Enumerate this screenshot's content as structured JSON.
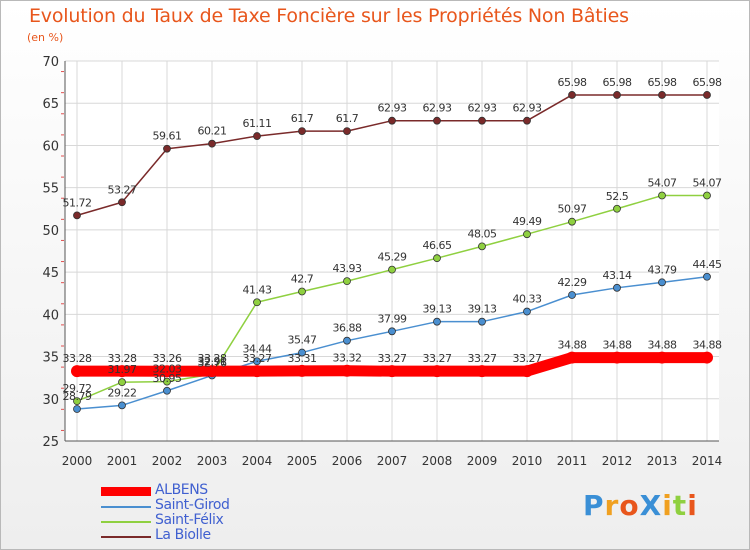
{
  "title": "Evolution du Taux de Taxe Foncière sur les Propriétés Non Bâties",
  "unit": "(en %)",
  "logo": "ProXiti",
  "chart_data": {
    "type": "line",
    "title": "Evolution du Taux de Taxe Foncière sur les Propriétés Non Bâties",
    "ylabel": "(en %)",
    "xlabel": "",
    "ylim": [
      25,
      70
    ],
    "yticks": [
      25,
      30,
      35,
      40,
      45,
      50,
      55,
      60,
      65,
      70
    ],
    "x": [
      "2000",
      "2001",
      "2002",
      "2003",
      "2004",
      "2005",
      "2006",
      "2007",
      "2008",
      "2009",
      "2010",
      "2011",
      "2012",
      "2013",
      "2014"
    ],
    "grid": true,
    "series": [
      {
        "name": "ALBENS",
        "color": "#ff0000",
        "values": [
          33.28,
          33.28,
          33.26,
          33.28,
          33.27,
          33.31,
          33.32,
          33.27,
          33.27,
          33.27,
          33.27,
          34.88,
          34.88,
          34.88,
          34.88
        ],
        "labels": [
          "33.28",
          "33.28",
          "33.26",
          "33.28",
          "33.27",
          "33.31",
          "33.32",
          "33.27",
          "33.27",
          "33.27",
          "33.27",
          "34.88",
          "34.88",
          "34.88",
          "34.88"
        ]
      },
      {
        "name": "Saint-Girod",
        "color": "#4a8fd0",
        "values": [
          28.79,
          29.22,
          30.95,
          32.76,
          34.44,
          35.47,
          36.88,
          37.99,
          39.13,
          39.13,
          40.33,
          42.29,
          43.14,
          43.79,
          44.45
        ],
        "labels": [
          "28.79",
          "29.22",
          "30.95",
          "32.76",
          "34.44",
          "35.47",
          "36.88",
          "37.99",
          "39.13",
          "39.13",
          "40.33",
          "42.29",
          "43.14",
          "43.79",
          "44.45"
        ]
      },
      {
        "name": "Saint-Félix",
        "color": "#8fd040",
        "values": [
          29.72,
          31.97,
          32.03,
          32.91,
          41.43,
          42.7,
          43.93,
          45.29,
          46.65,
          48.05,
          49.49,
          50.97,
          52.5,
          54.07,
          54.07
        ],
        "labels": [
          "29.72",
          "31.97",
          "32.03",
          "32.91",
          "41.43",
          "42.7",
          "43.93",
          "45.29",
          "46.65",
          "48.05",
          "49.49",
          "50.97",
          "52.5",
          "54.07",
          "54.07"
        ]
      },
      {
        "name": "La Biolle",
        "color": "#7a2a2a",
        "values": [
          51.72,
          53.27,
          59.61,
          60.21,
          61.11,
          61.7,
          61.7,
          62.93,
          62.93,
          62.93,
          62.93,
          65.98,
          65.98,
          65.98,
          65.98
        ],
        "labels": [
          "51.72",
          "53.27",
          "59.61",
          "60.21",
          "61.11",
          "61.7",
          "61.7",
          "62.93",
          "62.93",
          "62.93",
          "62.93",
          "65.98",
          "65.98",
          "65.98",
          "65.98"
        ]
      }
    ],
    "legend_position": "bottom-left"
  }
}
